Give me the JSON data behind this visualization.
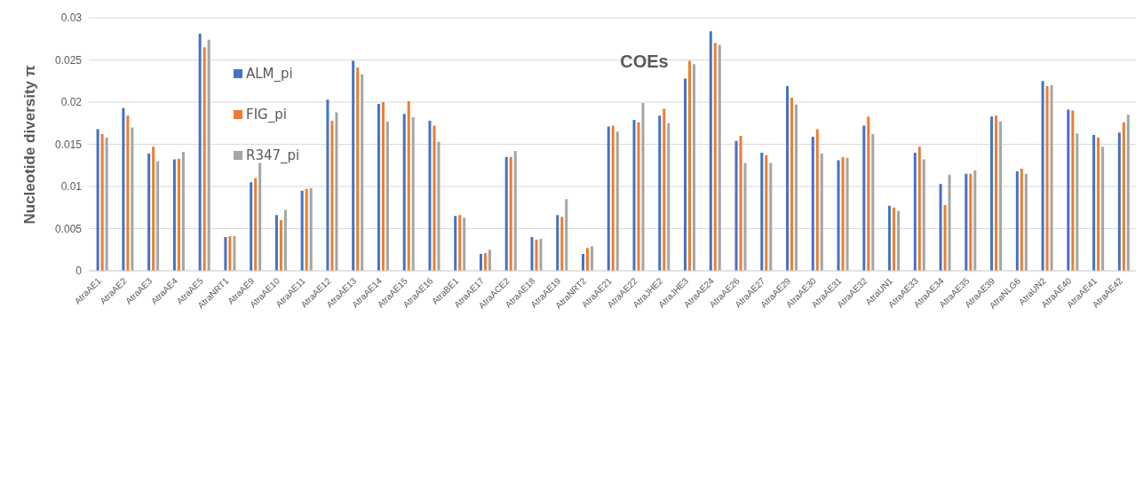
{
  "chart_data": {
    "type": "bar",
    "title": "COEs",
    "ylabel": "Nucleotide diversity π",
    "categories": [
      "AtraAE1",
      "AtraAE2",
      "AtraAE3",
      "AtraAE4",
      "AtraAE5",
      "AtraNRT1",
      "AtraAE9",
      "AtraAE10",
      "AtraAE11",
      "AtraAE12",
      "AtraAE13",
      "AtraAE14",
      "AtraAE15",
      "AtraAE16",
      "AtraBE1",
      "AtraAE17",
      "AtraACE2",
      "AtraAE18",
      "AtraAE19",
      "AtraNRT2",
      "AtraAE21",
      "AtraAE22",
      "AtraJHE2",
      "AtraJHE3",
      "AtraAE24",
      "AtraAE26",
      "AtraAE27",
      "AtraAE29",
      "AtraAE30",
      "AtraAE31",
      "AtraAE32",
      "AtraUN1",
      "AtraAE33",
      "AtraAE34",
      "AtraAE35",
      "AtraAE39",
      "AtraNLG6",
      "AtraUN2",
      "AtraAE40",
      "AtraAE41",
      "AtraAE42"
    ],
    "series": [
      {
        "name": "ALM_pi",
        "color": "#4472c4",
        "values": [
          0.0168,
          0.0193,
          0.0139,
          0.0132,
          0.0281,
          0.004,
          0.0105,
          0.0066,
          0.0095,
          0.0203,
          0.0249,
          0.0198,
          0.0186,
          0.0178,
          0.0065,
          0.002,
          0.0135,
          0.004,
          0.0066,
          0.002,
          0.0171,
          0.0179,
          0.0184,
          0.0228,
          0.0284,
          0.0154,
          0.014,
          0.0219,
          0.0159,
          0.0131,
          0.0172,
          0.0077,
          0.014,
          0.0103,
          0.0115,
          0.0183,
          0.0118,
          0.0225,
          0.0191,
          0.0161,
          0.0164
        ]
      },
      {
        "name": "FIG_pi",
        "color": "#ed7d31",
        "values": [
          0.0162,
          0.0184,
          0.0147,
          0.0133,
          0.0265,
          0.0041,
          0.011,
          0.006,
          0.0097,
          0.0178,
          0.0241,
          0.02,
          0.0201,
          0.0172,
          0.0066,
          0.0021,
          0.0135,
          0.0037,
          0.0064,
          0.0027,
          0.0172,
          0.0176,
          0.0192,
          0.0249,
          0.027,
          0.016,
          0.0137,
          0.0205,
          0.0168,
          0.0135,
          0.0183,
          0.0075,
          0.0147,
          0.0078,
          0.0115,
          0.0184,
          0.0121,
          0.0219,
          0.019,
          0.0158,
          0.0176
        ]
      },
      {
        "name": "R347_pi",
        "color": "#a5a5a5",
        "values": [
          0.0158,
          0.017,
          0.013,
          0.0141,
          0.0274,
          0.0041,
          0.0128,
          0.0072,
          0.0098,
          0.0188,
          0.0233,
          0.0177,
          0.0182,
          0.0153,
          0.0063,
          0.0025,
          0.0142,
          0.0038,
          0.0085,
          0.0029,
          0.0165,
          0.0199,
          0.0175,
          0.0245,
          0.0268,
          0.0128,
          0.0128,
          0.0197,
          0.0139,
          0.0134,
          0.0162,
          0.0071,
          0.0132,
          0.0114,
          0.0119,
          0.0177,
          0.0115,
          0.022,
          0.0163,
          0.0147,
          0.0185
        ]
      }
    ],
    "ylim": [
      0,
      0.03
    ],
    "yticks": [
      0,
      0.005,
      0.01,
      0.015,
      0.02,
      0.025,
      0.03
    ],
    "grid": "y",
    "legend": "top left"
  }
}
